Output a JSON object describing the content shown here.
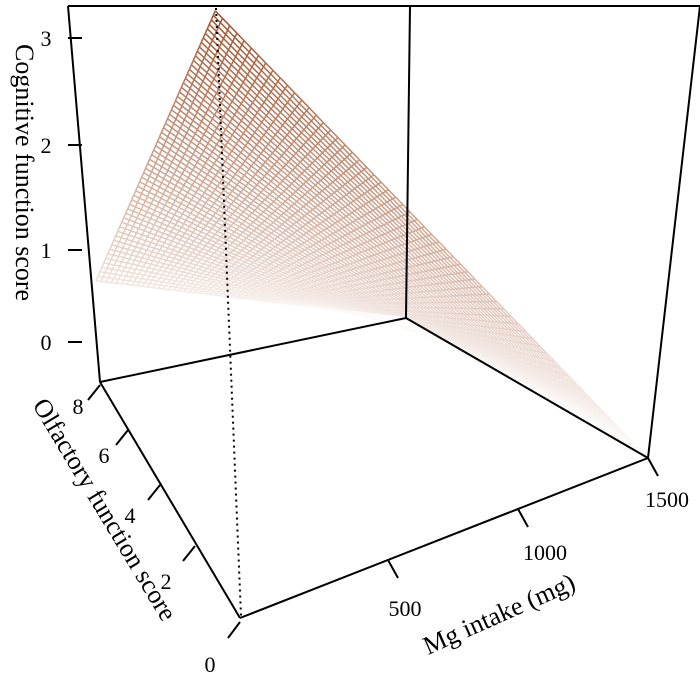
{
  "chart_data": {
    "type": "surface3d",
    "xlabel": "Mg intake (mg)",
    "ylabel": "Olfactory function score",
    "zlabel": "Cognitive function score",
    "x_ticks": [
      "500",
      "1000",
      "1500"
    ],
    "y_ticks": [
      "0",
      "2",
      "4",
      "6",
      "8"
    ],
    "z_ticks": [
      "0",
      "1",
      "2",
      "3"
    ],
    "xlim": [
      0,
      1500
    ],
    "ylim": [
      0,
      8
    ],
    "zlim": [
      0,
      3.3
    ],
    "surface": {
      "description_points": [
        {
          "x": 0,
          "y": 0,
          "z": 3.3
        },
        {
          "x": 0,
          "y": 8,
          "z": 0.55
        },
        {
          "x": 1500,
          "y": 8,
          "z": 0.0
        },
        {
          "x": 1500,
          "y": 0,
          "z": 0.0
        }
      ],
      "color_high": "#a0522d",
      "color_low": "#ffffff"
    },
    "guide_line": {
      "x": 0,
      "y": 0,
      "z_from": 0,
      "z_to": 3.3
    }
  }
}
